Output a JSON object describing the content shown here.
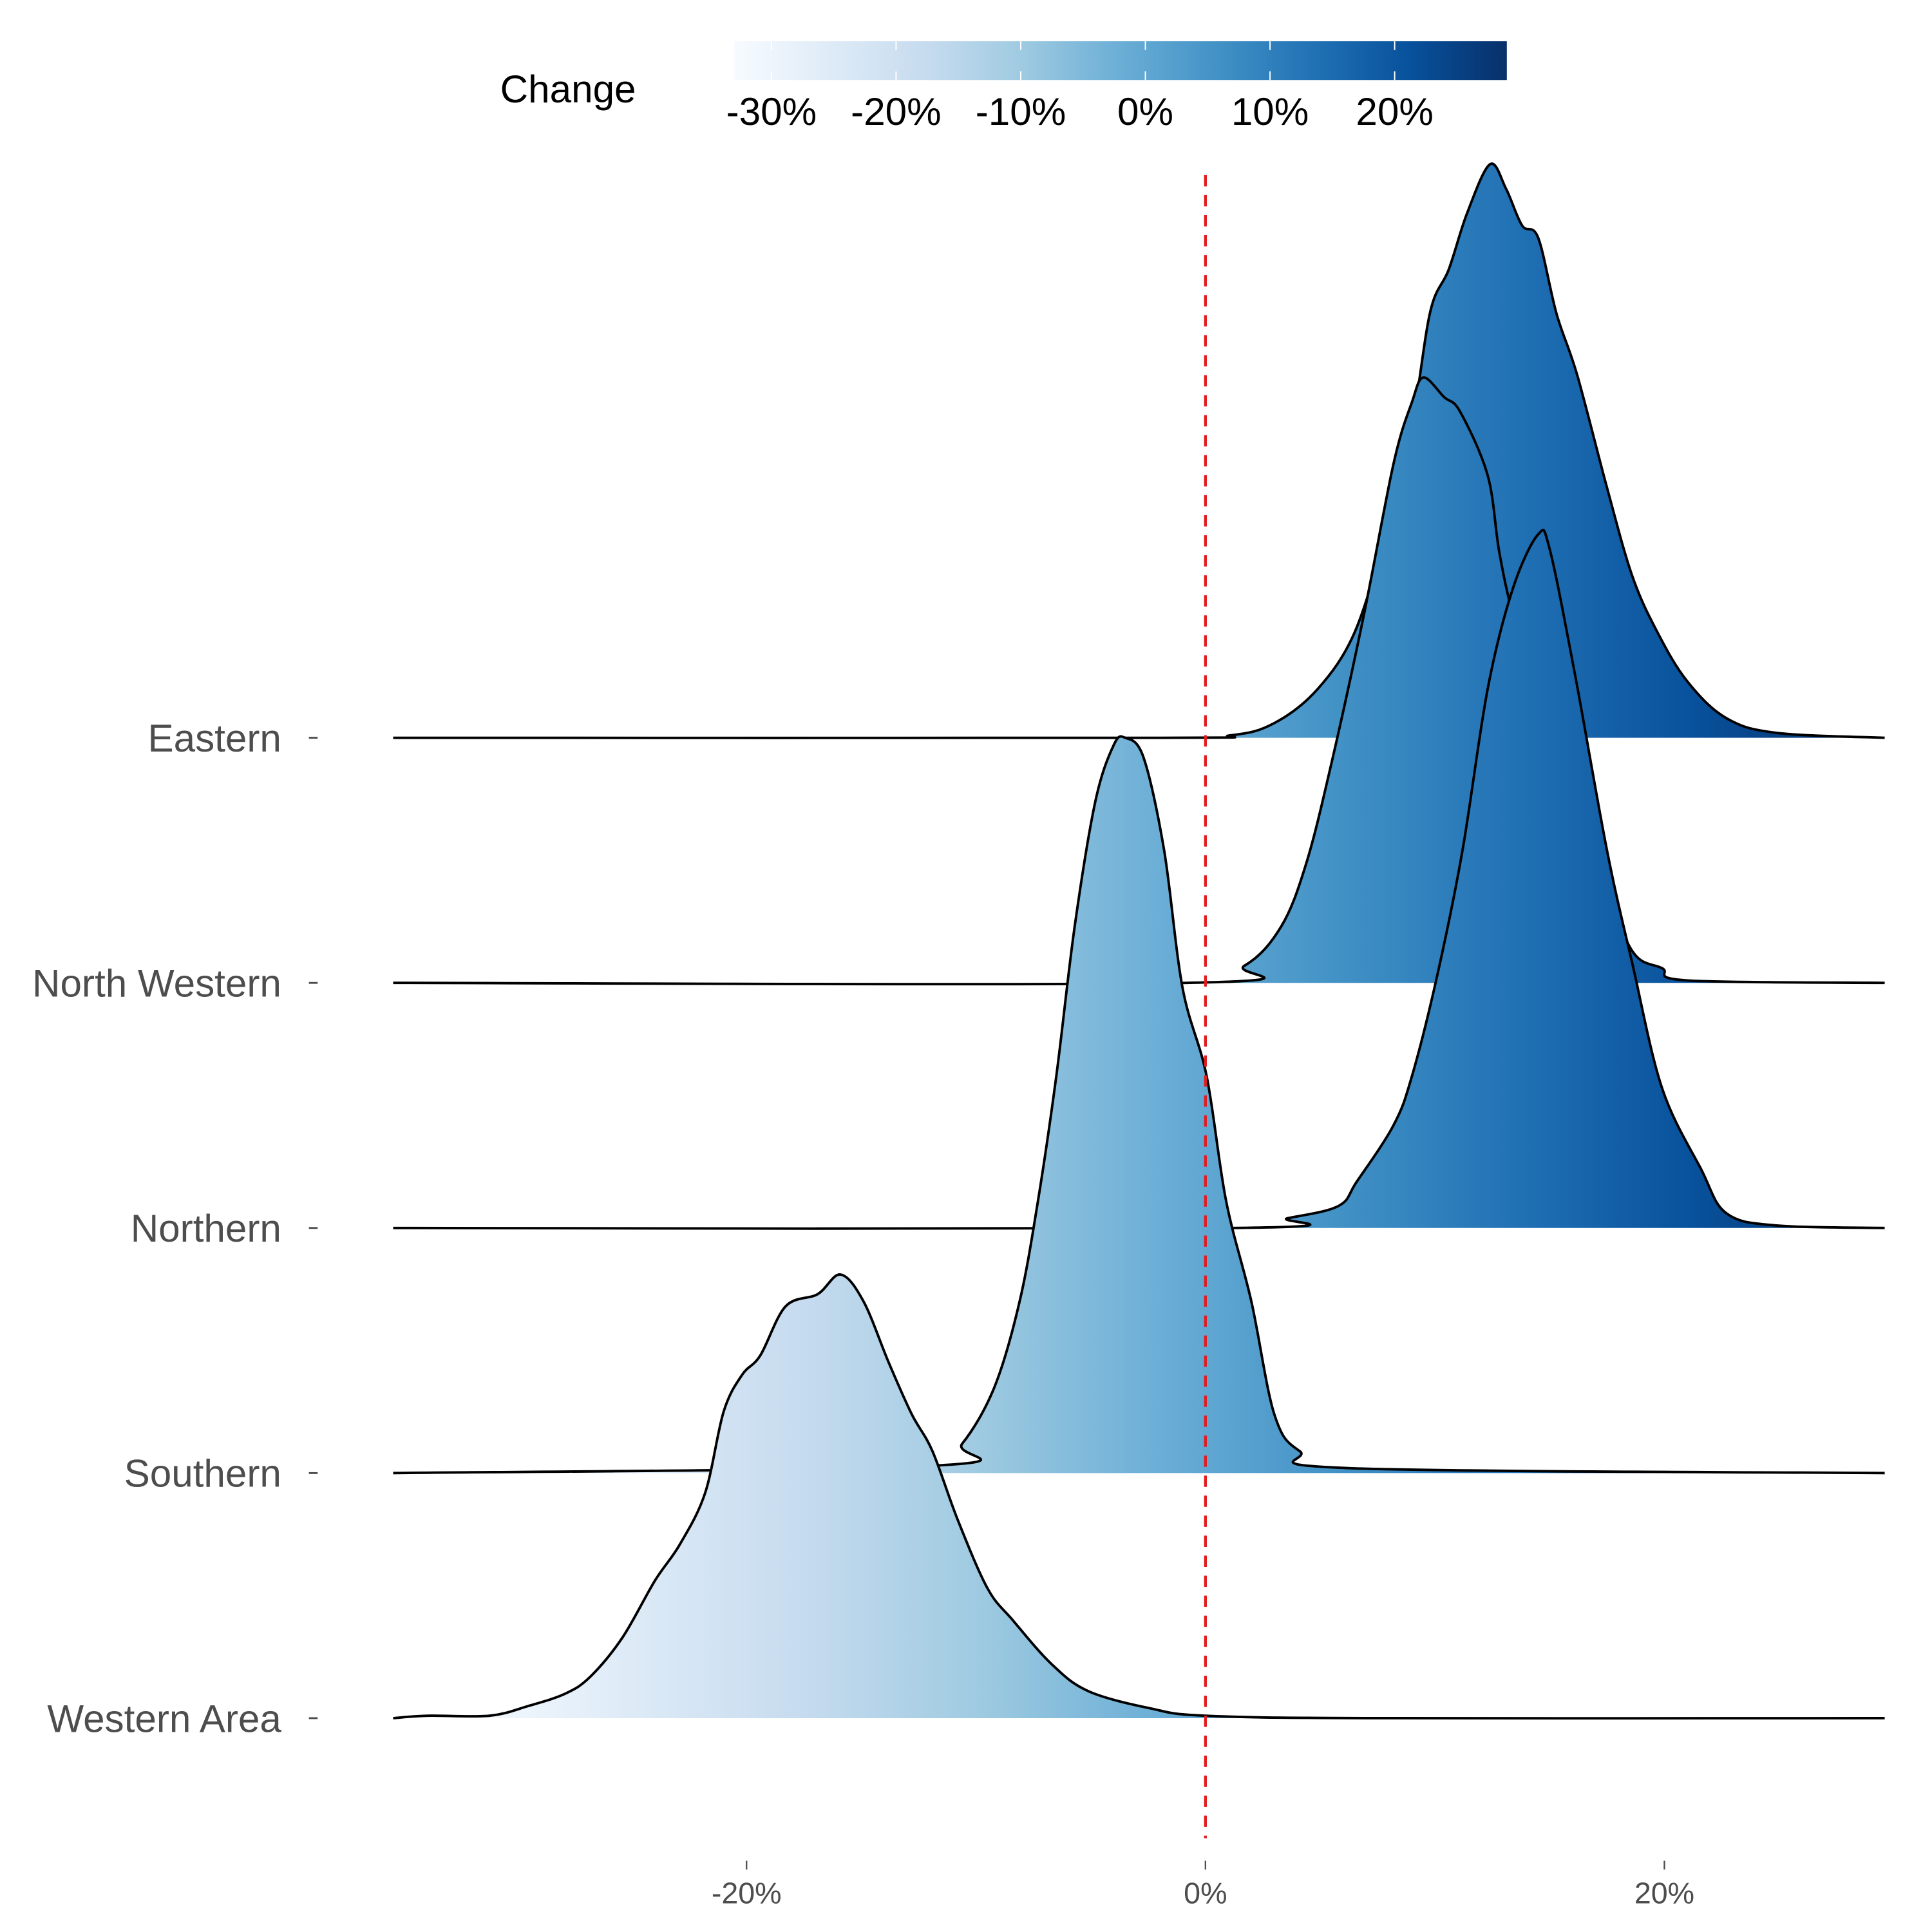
{
  "chart_data": {
    "type": "ridgeline",
    "title": "",
    "xlabel": "",
    "ylabel": "",
    "xlim": [
      -35.4,
      29.6
    ],
    "x_unit": "%",
    "x_ticks": [
      {
        "value": -20,
        "label": "-20%"
      },
      {
        "value": 0,
        "label": "0%"
      },
      {
        "value": 20,
        "label": "20%"
      }
    ],
    "reference_line": {
      "x": 0,
      "style": "dashed",
      "color": "#e41a1c"
    },
    "legend": {
      "title": "Change",
      "position": "top",
      "range": [
        -33,
        29
      ],
      "ticks": [
        {
          "value": -30,
          "label": "-30%"
        },
        {
          "value": -20,
          "label": "-20%"
        },
        {
          "value": -10,
          "label": "-10%"
        },
        {
          "value": 0,
          "label": "0%"
        },
        {
          "value": 10,
          "label": "10%"
        },
        {
          "value": 20,
          "label": "20%"
        }
      ],
      "colors": [
        "#f7fbff",
        "#deebf7",
        "#c6dbef",
        "#9ecae1",
        "#6baed6",
        "#4292c6",
        "#2171b5",
        "#08519c",
        "#08306b"
      ]
    },
    "series": [
      {
        "name": "Eastern",
        "points": [
          [
            -35.4,
            0
          ],
          [
            -2.4,
            0
          ],
          [
            1.1,
            0.01
          ],
          [
            3.0,
            0.06
          ],
          [
            4.9,
            0.2
          ],
          [
            6.5,
            0.43
          ],
          [
            7.8,
            0.82
          ],
          [
            9.0,
            1.28
          ],
          [
            9.8,
            1.74
          ],
          [
            10.6,
            1.91
          ],
          [
            11.4,
            2.14
          ],
          [
            12.4,
            2.34
          ],
          [
            13.1,
            2.24
          ],
          [
            13.8,
            2.09
          ],
          [
            14.5,
            2.04
          ],
          [
            15.3,
            1.73
          ],
          [
            16.2,
            1.48
          ],
          [
            17.5,
            1.02
          ],
          [
            18.6,
            0.66
          ],
          [
            19.7,
            0.43
          ],
          [
            21.0,
            0.23
          ],
          [
            22.7,
            0.08
          ],
          [
            24.9,
            0.02
          ],
          [
            29.6,
            0
          ]
        ]
      },
      {
        "name": "North Western",
        "points": [
          [
            -35.4,
            0
          ],
          [
            -0.8,
            0
          ],
          [
            1.7,
            0.07
          ],
          [
            3.3,
            0.23
          ],
          [
            4.4,
            0.49
          ],
          [
            5.5,
            0.9
          ],
          [
            6.9,
            1.5
          ],
          [
            8.2,
            2.12
          ],
          [
            9.0,
            2.37
          ],
          [
            9.5,
            2.47
          ],
          [
            10.4,
            2.39
          ],
          [
            11.1,
            2.33
          ],
          [
            12.3,
            2.07
          ],
          [
            12.8,
            1.76
          ],
          [
            13.4,
            1.5
          ],
          [
            14.5,
            1.15
          ],
          [
            15.9,
            0.74
          ],
          [
            17.2,
            0.44
          ],
          [
            18.6,
            0.13
          ],
          [
            19.9,
            0.06
          ],
          [
            21.0,
            0.01
          ],
          [
            29.6,
            0
          ]
        ]
      },
      {
        "name": "Northern",
        "points": [
          [
            -35.4,
            0
          ],
          [
            1.1,
            0
          ],
          [
            3.6,
            0.04
          ],
          [
            5.8,
            0.09
          ],
          [
            6.6,
            0.19
          ],
          [
            8.2,
            0.42
          ],
          [
            9.0,
            0.62
          ],
          [
            10.1,
            1.03
          ],
          [
            11.2,
            1.54
          ],
          [
            12.3,
            2.2
          ],
          [
            13.4,
            2.61
          ],
          [
            14.5,
            2.83
          ],
          [
            15.0,
            2.77
          ],
          [
            16.1,
            2.26
          ],
          [
            17.5,
            1.54
          ],
          [
            18.6,
            1.08
          ],
          [
            19.9,
            0.57
          ],
          [
            21.6,
            0.24
          ],
          [
            22.7,
            0.06
          ],
          [
            24.9,
            0.01
          ],
          [
            29.6,
            0
          ]
        ]
      },
      {
        "name": "Southern",
        "points": [
          [
            -35.4,
            0
          ],
          [
            -11.9,
            0.03
          ],
          [
            -10.6,
            0.12
          ],
          [
            -9.2,
            0.35
          ],
          [
            -8.1,
            0.7
          ],
          [
            -7.3,
            1.11
          ],
          [
            -6.5,
            1.62
          ],
          [
            -5.7,
            2.23
          ],
          [
            -4.8,
            2.74
          ],
          [
            -4.0,
            2.97
          ],
          [
            -3.5,
            3.0
          ],
          [
            -2.7,
            2.92
          ],
          [
            -1.8,
            2.54
          ],
          [
            -1.0,
            1.98
          ],
          [
            0.05,
            1.62
          ],
          [
            0.9,
            1.11
          ],
          [
            2.0,
            0.7
          ],
          [
            3.0,
            0.24
          ],
          [
            4.1,
            0.09
          ],
          [
            6.3,
            0.02
          ],
          [
            29.6,
            0
          ]
        ]
      },
      {
        "name": "Western Area",
        "points": [
          [
            -35.4,
            0
          ],
          [
            -33.9,
            0.01
          ],
          [
            -31.2,
            0.01
          ],
          [
            -29.5,
            0.05
          ],
          [
            -27.9,
            0.1
          ],
          [
            -26.8,
            0.17
          ],
          [
            -25.4,
            0.33
          ],
          [
            -24.0,
            0.56
          ],
          [
            -22.9,
            0.71
          ],
          [
            -21.8,
            0.92
          ],
          [
            -21.0,
            1.25
          ],
          [
            -20.2,
            1.4
          ],
          [
            -19.4,
            1.48
          ],
          [
            -18.3,
            1.68
          ],
          [
            -16.9,
            1.73
          ],
          [
            -15.9,
            1.81
          ],
          [
            -14.9,
            1.7
          ],
          [
            -13.8,
            1.45
          ],
          [
            -12.8,
            1.24
          ],
          [
            -11.9,
            1.09
          ],
          [
            -10.8,
            0.81
          ],
          [
            -9.5,
            0.53
          ],
          [
            -8.4,
            0.4
          ],
          [
            -6.7,
            0.22
          ],
          [
            -5.1,
            0.11
          ],
          [
            -2.4,
            0.04
          ],
          [
            0,
            0.01
          ],
          [
            7.4,
            0
          ],
          [
            29.6,
            0
          ]
        ]
      }
    ]
  }
}
